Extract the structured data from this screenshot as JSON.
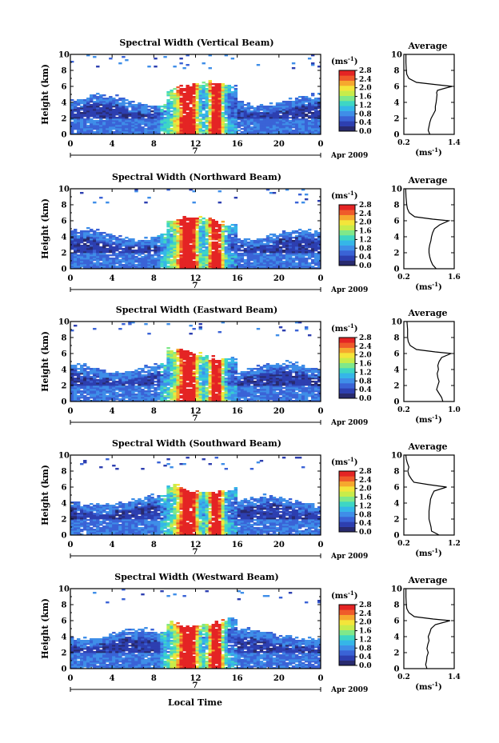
{
  "chart_data": [
    {
      "type": "heatmap",
      "title": "Spectral Width (Vertical Beam)",
      "ylabel": "Height (km)",
      "x_ticks": [
        "0",
        "4",
        "8",
        "12",
        "16",
        "20",
        "0"
      ],
      "y_ticks": [
        "0",
        "2",
        "4",
        "6",
        "8",
        "10"
      ],
      "xlim": [
        0,
        24
      ],
      "ylim": [
        0,
        10
      ],
      "date_day": "7",
      "date_label": "Apr 2009",
      "colorbar": {
        "unit": "(ms",
        "unit_exp": "-1",
        "unit_close": ")",
        "ticks": [
          "0.0",
          "0.4",
          "0.8",
          "1.2",
          "1.6",
          "2.0",
          "2.4",
          "2.8"
        ],
        "range": [
          0,
          2.8
        ]
      },
      "profile": {
        "title": "Average",
        "x_ticks": [
          "0.2",
          "1.4"
        ],
        "xlim": [
          0.2,
          1.4
        ],
        "y_ticks": [
          "0",
          "2",
          "4",
          "6",
          "8",
          "10"
        ],
        "xlabel": "(ms",
        "xlabel_exp": "-1",
        "xlabel_close": ")",
        "height": [
          0,
          0.5,
          1,
          1.5,
          2,
          2.5,
          3,
          3.5,
          4,
          4.5,
          5,
          5.2,
          5.5,
          5.8,
          6,
          6.2,
          6.5,
          7,
          7.5,
          8,
          9,
          10
        ],
        "value": [
          0.82,
          0.78,
          0.8,
          0.82,
          0.85,
          0.9,
          0.95,
          0.95,
          0.97,
          0.98,
          0.99,
          0.98,
          1.0,
          1.2,
          1.35,
          1.0,
          0.5,
          0.32,
          0.27,
          0.26,
          0.25,
          0.25
        ]
      }
    },
    {
      "type": "heatmap",
      "title": "Spectral Width (Northward Beam)",
      "ylabel": "Height (km)",
      "x_ticks": [
        "0",
        "4",
        "8",
        "12",
        "16",
        "20",
        "0"
      ],
      "y_ticks": [
        "0",
        "2",
        "4",
        "6",
        "8",
        "10"
      ],
      "xlim": [
        0,
        24
      ],
      "ylim": [
        0,
        10
      ],
      "date_day": "7",
      "date_label": "Apr 2009",
      "colorbar": {
        "unit": "(ms",
        "unit_exp": "-1",
        "unit_close": ")",
        "ticks": [
          "0.0",
          "0.4",
          "0.8",
          "1.2",
          "1.6",
          "2.0",
          "2.4",
          "2.8"
        ],
        "range": [
          0,
          2.8
        ]
      },
      "profile": {
        "title": "Average",
        "x_ticks": [
          "0.2",
          "1.6"
        ],
        "xlim": [
          0.2,
          1.6
        ],
        "y_ticks": [
          "0",
          "2",
          "4",
          "6",
          "8",
          "10"
        ],
        "xlabel": "(ms",
        "xlabel_exp": "-1",
        "xlabel_close": ")",
        "height": [
          0,
          0.5,
          1,
          1.5,
          2,
          2.5,
          3,
          3.5,
          4,
          4.5,
          5,
          5.5,
          6,
          6.2,
          6.5,
          7,
          7.5,
          8,
          9,
          10
        ],
        "value": [
          1.1,
          1.0,
          0.95,
          0.92,
          0.9,
          0.9,
          0.92,
          0.95,
          0.97,
          1.0,
          1.05,
          1.2,
          1.45,
          1.0,
          0.5,
          0.35,
          0.3,
          0.28,
          0.26,
          0.25
        ]
      }
    },
    {
      "type": "heatmap",
      "title": "Spectral Width (Eastward Beam)",
      "ylabel": "Height (km)",
      "x_ticks": [
        "0",
        "4",
        "8",
        "12",
        "16",
        "20",
        "0"
      ],
      "y_ticks": [
        "0",
        "2",
        "4",
        "6",
        "8",
        "10"
      ],
      "xlim": [
        0,
        24
      ],
      "ylim": [
        0,
        10
      ],
      "date_day": "7",
      "date_label": "Apr 2009",
      "colorbar": {
        "unit": "(ms",
        "unit_exp": "-1",
        "unit_close": ")",
        "ticks": [
          "0.0",
          "0.4",
          "0.8",
          "1.2",
          "1.6",
          "2.0",
          "2.4",
          "2.8"
        ],
        "range": [
          0,
          2.8
        ]
      },
      "profile": {
        "title": "Average",
        "x_ticks": [
          "0.2",
          "1.0"
        ],
        "xlim": [
          0.2,
          1.0
        ],
        "y_ticks": [
          "0",
          "2",
          "4",
          "6",
          "8",
          "10"
        ],
        "xlabel": "(ms",
        "xlabel_exp": "-1",
        "xlabel_close": ")",
        "height": [
          0,
          0.5,
          1,
          1.5,
          2,
          2.5,
          3,
          3.5,
          4,
          4.5,
          5,
          5.5,
          6,
          6.2,
          6.5,
          7,
          7.5,
          8,
          9,
          10
        ],
        "value": [
          0.82,
          0.8,
          0.76,
          0.72,
          0.74,
          0.76,
          0.74,
          0.73,
          0.75,
          0.74,
          0.76,
          0.8,
          0.95,
          0.7,
          0.4,
          0.3,
          0.27,
          0.26,
          0.26,
          0.25
        ]
      }
    },
    {
      "type": "heatmap",
      "title": "Spectral Width (Southward Beam)",
      "ylabel": "Height (km)",
      "x_ticks": [
        "0",
        "4",
        "8",
        "12",
        "16",
        "20",
        "0"
      ],
      "y_ticks": [
        "0",
        "2",
        "4",
        "6",
        "8",
        "10"
      ],
      "xlim": [
        0,
        24
      ],
      "ylim": [
        0,
        10
      ],
      "date_day": "7",
      "date_label": "Apr 2009",
      "colorbar": {
        "unit": "(ms",
        "unit_exp": "-1",
        "unit_close": ")",
        "ticks": [
          "0.0",
          "0.4",
          "0.8",
          "1.2",
          "1.6",
          "2.0",
          "2.4",
          "2.8"
        ],
        "range": [
          0,
          2.8
        ]
      },
      "profile": {
        "title": "Average",
        "x_ticks": [
          "0.2",
          "1.2"
        ],
        "xlim": [
          0.2,
          1.2
        ],
        "y_ticks": [
          "0",
          "2",
          "4",
          "6",
          "8",
          "10"
        ],
        "xlabel": "(ms",
        "xlabel_exp": "-1",
        "xlabel_close": ")",
        "height": [
          0,
          0.5,
          1,
          1.5,
          2,
          2.5,
          3,
          3.5,
          4,
          4.5,
          5,
          5.5,
          6,
          6.3,
          6.6,
          7,
          7.5,
          8,
          8.5,
          9,
          9.5,
          10
        ],
        "value": [
          0.9,
          0.75,
          0.74,
          0.72,
          0.7,
          0.7,
          0.7,
          0.71,
          0.72,
          0.73,
          0.76,
          0.8,
          1.05,
          0.7,
          0.4,
          0.35,
          0.3,
          0.28,
          0.3,
          0.27,
          0.25,
          0.24
        ]
      }
    },
    {
      "type": "heatmap",
      "title": "Spectral Width (Westward Beam)",
      "ylabel": "Height (km)",
      "xlabel": "Local Time",
      "x_ticks": [
        "0",
        "4",
        "8",
        "12",
        "16",
        "20",
        "0"
      ],
      "y_ticks": [
        "0",
        "2",
        "4",
        "6",
        "8",
        "10"
      ],
      "xlim": [
        0,
        24
      ],
      "ylim": [
        0,
        10
      ],
      "date_day": "7",
      "date_label": "Apr 2009",
      "colorbar": {
        "unit": "(ms",
        "unit_exp": "-1",
        "unit_close": ")",
        "ticks": [
          "0.0",
          "0.4",
          "0.8",
          "1.2",
          "1.6",
          "2.0",
          "2.4",
          "2.8"
        ],
        "range": [
          0,
          2.8
        ]
      },
      "profile": {
        "title": "Average",
        "x_ticks": [
          "0.2",
          "1.4"
        ],
        "xlim": [
          0.2,
          1.4
        ],
        "y_ticks": [
          "0",
          "2",
          "4",
          "6",
          "8",
          "10"
        ],
        "xlabel": "(ms",
        "xlabel_exp": "-1",
        "xlabel_close": ")",
        "height": [
          0,
          0.5,
          1,
          1.5,
          2,
          2.5,
          3,
          3.5,
          4,
          4.5,
          5,
          5.5,
          6,
          6.2,
          6.5,
          7,
          7.5,
          8,
          9,
          10
        ],
        "value": [
          0.75,
          0.72,
          0.74,
          0.75,
          0.78,
          0.75,
          0.77,
          0.8,
          0.78,
          0.82,
          0.85,
          0.95,
          1.3,
          0.9,
          0.45,
          0.32,
          0.27,
          0.26,
          0.25,
          0.25
        ]
      }
    }
  ],
  "colors": {
    "colormap": [
      "#282a6e",
      "#2d3fb0",
      "#3a63d6",
      "#3f8ee8",
      "#35b6e8",
      "#3ed6c4",
      "#7fe88a",
      "#c8ec4a",
      "#f4e53a",
      "#f6a82e",
      "#ef5a2a",
      "#e42424"
    ],
    "axis": "#000000",
    "background": "#ffffff"
  }
}
